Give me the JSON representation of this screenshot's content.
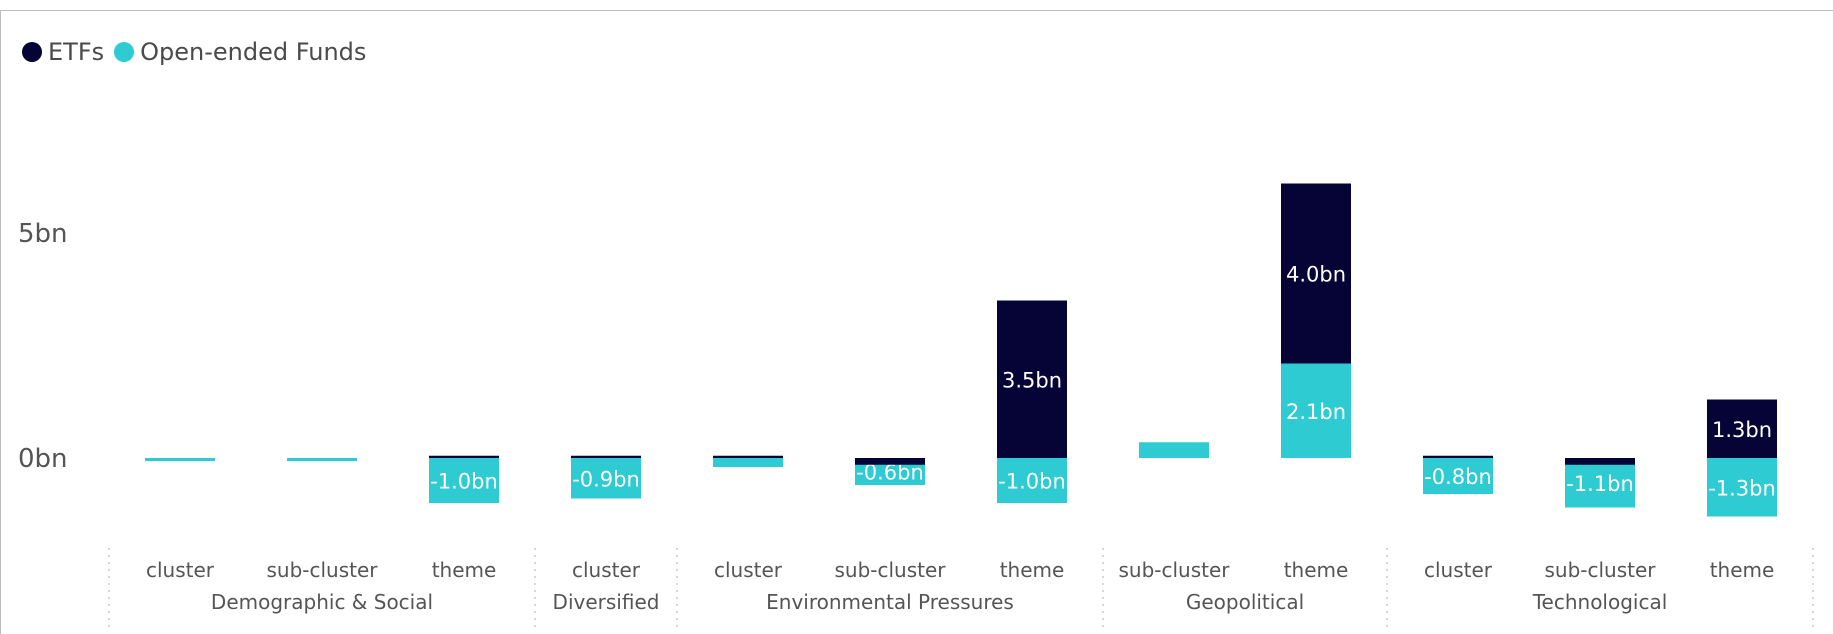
{
  "chart_data": {
    "type": "bar",
    "stacked": true,
    "legend": {
      "placement": "top-left"
    },
    "series": [
      {
        "name": "ETFs",
        "color": "#060437"
      },
      {
        "name": "Open-ended Funds",
        "color": "#2ECBD3"
      }
    ],
    "categories": [
      {
        "group": "Demographic & Social",
        "label": "cluster",
        "etf": 0,
        "oef": -0.05,
        "etf_label": "",
        "oef_label": ""
      },
      {
        "group": "Demographic & Social",
        "label": "sub-cluster",
        "etf": 0,
        "oef": -0.05,
        "etf_label": "",
        "oef_label": ""
      },
      {
        "group": "Demographic & Social",
        "label": "theme",
        "etf": 0.05,
        "oef": -1.0,
        "etf_label": "",
        "oef_label": "-1.0bn"
      },
      {
        "group": "Diversified",
        "label": "cluster",
        "etf": 0.05,
        "oef": -0.9,
        "etf_label": "",
        "oef_label": "-0.9bn"
      },
      {
        "group": "Environmental Pressures",
        "label": "cluster",
        "etf": 0.05,
        "oef": -0.2,
        "etf_label": "",
        "oef_label": ""
      },
      {
        "group": "Environmental Pressures",
        "label": "sub-cluster",
        "etf": -0.15,
        "oef": -0.6,
        "etf_label": "",
        "oef_label": "-0.6bn"
      },
      {
        "group": "Environmental Pressures",
        "label": "theme",
        "etf": 3.5,
        "oef": -1.0,
        "etf_label": "3.5bn",
        "oef_label": "-1.0bn"
      },
      {
        "group": "Geopolitical",
        "label": "sub-cluster",
        "etf": 0,
        "oef": 0.35,
        "etf_label": "",
        "oef_label": ""
      },
      {
        "group": "Geopolitical",
        "label": "theme",
        "etf": 4.0,
        "oef": 2.1,
        "etf_label": "4.0bn",
        "oef_label": "2.1bn"
      },
      {
        "group": "Technological",
        "label": "cluster",
        "etf": 0.05,
        "oef": -0.8,
        "etf_label": "",
        "oef_label": "-0.8bn"
      },
      {
        "group": "Technological",
        "label": "sub-cluster",
        "etf": -0.15,
        "oef": -1.1,
        "etf_label": "",
        "oef_label": "-1.1bn"
      },
      {
        "group": "Technological",
        "label": "theme",
        "etf": 1.3,
        "oef": -1.3,
        "etf_label": "1.3bn",
        "oef_label": "-1.3bn"
      }
    ],
    "groups": [
      "Demographic & Social",
      "Diversified",
      "Environmental Pressures",
      "Geopolitical",
      "Technological"
    ],
    "y_ticks": [
      {
        "value": 0,
        "label": "0bn"
      },
      {
        "value": 5,
        "label": "5bn"
      }
    ],
    "ylim": [
      -1.8,
      7.2
    ],
    "grid": false
  }
}
